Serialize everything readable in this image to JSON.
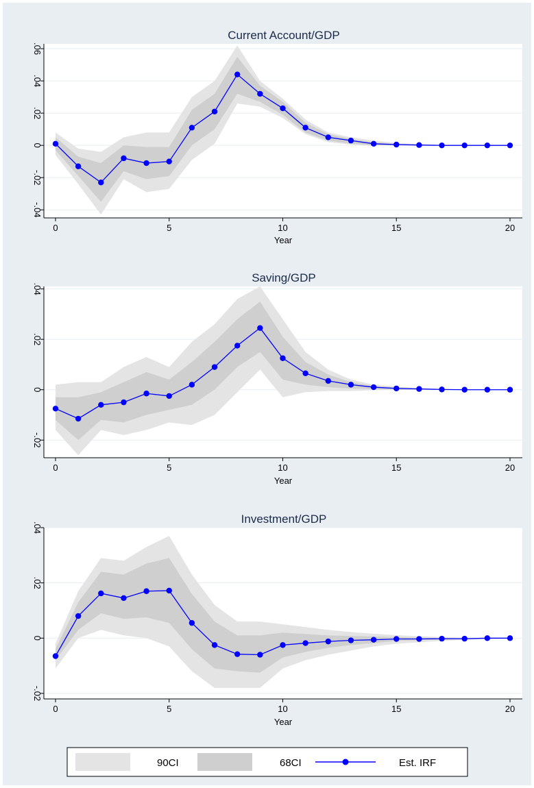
{
  "colors": {
    "outer_background": "#e9eef3",
    "plot_background": "#ffffff",
    "gridline": "#e6edf2",
    "ci90_fill": "#e4e4e4",
    "ci68_fill": "#cfcfcf",
    "irf_line": "#0000ff",
    "title_text": "#1a2a48"
  },
  "legend": {
    "placement": "bottom",
    "items": [
      {
        "label": "90CI",
        "symbol": "band",
        "color": "#e4e4e4"
      },
      {
        "label": "68CI",
        "symbol": "band",
        "color": "#cfcfcf"
      },
      {
        "label": "Est. IRF",
        "symbol": "line-dot",
        "color": "#0000ff"
      }
    ]
  },
  "chart_data": [
    {
      "type": "line",
      "title": "Current Account/GDP",
      "xlabel": "Year",
      "ylabel": "",
      "xlim": [
        0,
        20
      ],
      "ylim": [
        -0.045,
        0.063
      ],
      "xticks": [
        0,
        5,
        10,
        15,
        20
      ],
      "xtick_labels": [
        "0",
        "5",
        "10",
        "15",
        "20"
      ],
      "yticks": [
        -0.04,
        -0.02,
        0,
        0.02,
        0.04,
        0.06
      ],
      "ytick_labels": [
        "-.04",
        "-.02",
        "0",
        ".02",
        ".04",
        ".06"
      ],
      "grid": true,
      "x": [
        0,
        1,
        2,
        3,
        4,
        5,
        6,
        7,
        8,
        9,
        10,
        11,
        12,
        13,
        14,
        15,
        16,
        17,
        18,
        19,
        20
      ],
      "series": [
        {
          "name": "Est. IRF",
          "values": [
            0.001,
            -0.013,
            -0.023,
            -0.008,
            -0.011,
            -0.01,
            0.011,
            0.021,
            0.044,
            0.032,
            0.023,
            0.011,
            0.005,
            0.003,
            0.001,
            0.0005,
            0.0002,
            0.0,
            0.0,
            0.0,
            0.0
          ]
        }
      ],
      "ci68": {
        "lower": [
          -0.003,
          -0.019,
          -0.035,
          -0.016,
          -0.021,
          -0.019,
          0.0,
          0.01,
          0.032,
          0.027,
          0.019,
          0.008,
          0.003,
          0.001,
          0.0,
          0.0,
          0.0,
          0.0,
          0.0,
          0.0,
          0.0
        ],
        "upper": [
          0.005,
          -0.007,
          -0.011,
          0.0,
          -0.001,
          -0.001,
          0.022,
          0.032,
          0.055,
          0.037,
          0.027,
          0.014,
          0.007,
          0.004,
          0.002,
          0.001,
          0.0005,
          0.0002,
          0.0,
          0.0,
          0.0
        ]
      },
      "ci90": {
        "lower": [
          -0.006,
          -0.024,
          -0.043,
          -0.021,
          -0.029,
          -0.027,
          -0.009,
          0.001,
          0.026,
          0.024,
          0.017,
          0.007,
          0.002,
          0.0005,
          0.0,
          0.0,
          0.0,
          0.0,
          0.0,
          0.0,
          0.0
        ],
        "upper": [
          0.008,
          -0.002,
          -0.004,
          0.005,
          0.008,
          0.008,
          0.03,
          0.04,
          0.062,
          0.04,
          0.029,
          0.016,
          0.008,
          0.005,
          0.003,
          0.0015,
          0.0008,
          0.0003,
          0.0001,
          0.0,
          0.0
        ]
      }
    },
    {
      "type": "line",
      "title": "Saving/GDP",
      "xlabel": "Year",
      "ylabel": "",
      "xlim": [
        0,
        20
      ],
      "ylim": [
        -0.027,
        0.041
      ],
      "xticks": [
        0,
        5,
        10,
        15,
        20
      ],
      "xtick_labels": [
        "0",
        "5",
        "10",
        "15",
        "20"
      ],
      "yticks": [
        -0.02,
        0,
        0.02,
        0.04
      ],
      "ytick_labels": [
        "-.02",
        "0",
        ".02",
        ".04"
      ],
      "grid": true,
      "x": [
        0,
        1,
        2,
        3,
        4,
        5,
        6,
        7,
        8,
        9,
        10,
        11,
        12,
        13,
        14,
        15,
        16,
        17,
        18,
        19,
        20
      ],
      "series": [
        {
          "name": "Est. IRF",
          "values": [
            -0.0075,
            -0.0115,
            -0.006,
            -0.005,
            -0.0015,
            -0.0025,
            0.002,
            0.009,
            0.0175,
            0.0245,
            0.0125,
            0.0065,
            0.0035,
            0.002,
            0.001,
            0.0005,
            0.0003,
            0.0001,
            0.0,
            0.0,
            0.0
          ]
        }
      ],
      "ci68": {
        "lower": [
          -0.012,
          -0.02,
          -0.012,
          -0.013,
          -0.01,
          -0.008,
          -0.006,
          0.0,
          0.009,
          0.015,
          0.004,
          0.002,
          0.001,
          0.0005,
          0.0002,
          0.0,
          0.0,
          0.0,
          0.0,
          0.0,
          0.0
        ],
        "upper": [
          -0.003,
          -0.003,
          -0.001,
          0.003,
          0.007,
          0.004,
          0.011,
          0.019,
          0.028,
          0.035,
          0.021,
          0.011,
          0.006,
          0.003,
          0.0015,
          0.001,
          0.0005,
          0.0002,
          0.0001,
          0.0,
          0.0
        ]
      },
      "ci90": {
        "lower": [
          -0.016,
          -0.026,
          -0.016,
          -0.018,
          -0.016,
          -0.013,
          -0.014,
          -0.01,
          -0.001,
          0.008,
          -0.003,
          -0.001,
          -0.0005,
          -0.0005,
          -0.0002,
          0.0,
          0.0,
          0.0,
          0.0,
          0.0,
          0.0
        ],
        "upper": [
          0.002,
          0.003,
          0.003,
          0.009,
          0.013,
          0.009,
          0.019,
          0.026,
          0.036,
          0.041,
          0.028,
          0.015,
          0.008,
          0.004,
          0.002,
          0.0012,
          0.0007,
          0.0003,
          0.0001,
          0.0,
          0.0
        ]
      }
    },
    {
      "type": "line",
      "title": "Investment/GDP",
      "xlabel": "Year",
      "ylabel": "",
      "xlim": [
        0,
        20
      ],
      "ylim": [
        -0.022,
        0.04
      ],
      "xticks": [
        0,
        5,
        10,
        15,
        20
      ],
      "xtick_labels": [
        "0",
        "5",
        "10",
        "15",
        "20"
      ],
      "yticks": [
        -0.02,
        0,
        0.02,
        0.04
      ],
      "ytick_labels": [
        "-.02",
        "0",
        ".02",
        ".04"
      ],
      "grid": true,
      "x": [
        0,
        1,
        2,
        3,
        4,
        5,
        6,
        7,
        8,
        9,
        10,
        11,
        12,
        13,
        14,
        15,
        16,
        17,
        18,
        19,
        20
      ],
      "series": [
        {
          "name": "Est. IRF",
          "values": [
            -0.0065,
            0.008,
            0.0162,
            0.0145,
            0.017,
            0.0172,
            0.0055,
            -0.0025,
            -0.0058,
            -0.006,
            -0.0025,
            -0.0018,
            -0.0012,
            -0.0008,
            -0.0006,
            -0.0003,
            -0.0003,
            -0.0002,
            -0.0002,
            0.0,
            0.0
          ]
        }
      ],
      "ci68": {
        "lower": [
          -0.008,
          0.003,
          0.009,
          0.007,
          0.0075,
          0.0055,
          -0.004,
          -0.011,
          -0.012,
          -0.0125,
          -0.007,
          -0.005,
          -0.0035,
          -0.0025,
          -0.0018,
          -0.001,
          -0.0008,
          -0.0006,
          -0.0004,
          -0.0002,
          -0.0001
        ],
        "upper": [
          -0.004,
          0.013,
          0.024,
          0.023,
          0.027,
          0.029,
          0.016,
          0.006,
          0.001,
          0.001,
          0.002,
          0.0015,
          0.001,
          0.0008,
          0.0006,
          0.0004,
          0.0002,
          0.0001,
          0.0,
          0.0,
          0.0
        ]
      },
      "ci90": {
        "lower": [
          -0.011,
          0.0,
          0.003,
          0.001,
          0.0,
          -0.003,
          -0.012,
          -0.018,
          -0.018,
          -0.018,
          -0.011,
          -0.008,
          -0.006,
          -0.0045,
          -0.003,
          -0.002,
          -0.0015,
          -0.001,
          -0.0007,
          -0.0004,
          -0.0002
        ],
        "upper": [
          -0.002,
          0.017,
          0.029,
          0.028,
          0.033,
          0.037,
          0.023,
          0.012,
          0.006,
          0.006,
          0.005,
          0.004,
          0.003,
          0.0022,
          0.0016,
          0.0011,
          0.0007,
          0.0004,
          0.0002,
          0.0001,
          0.0
        ]
      }
    }
  ]
}
